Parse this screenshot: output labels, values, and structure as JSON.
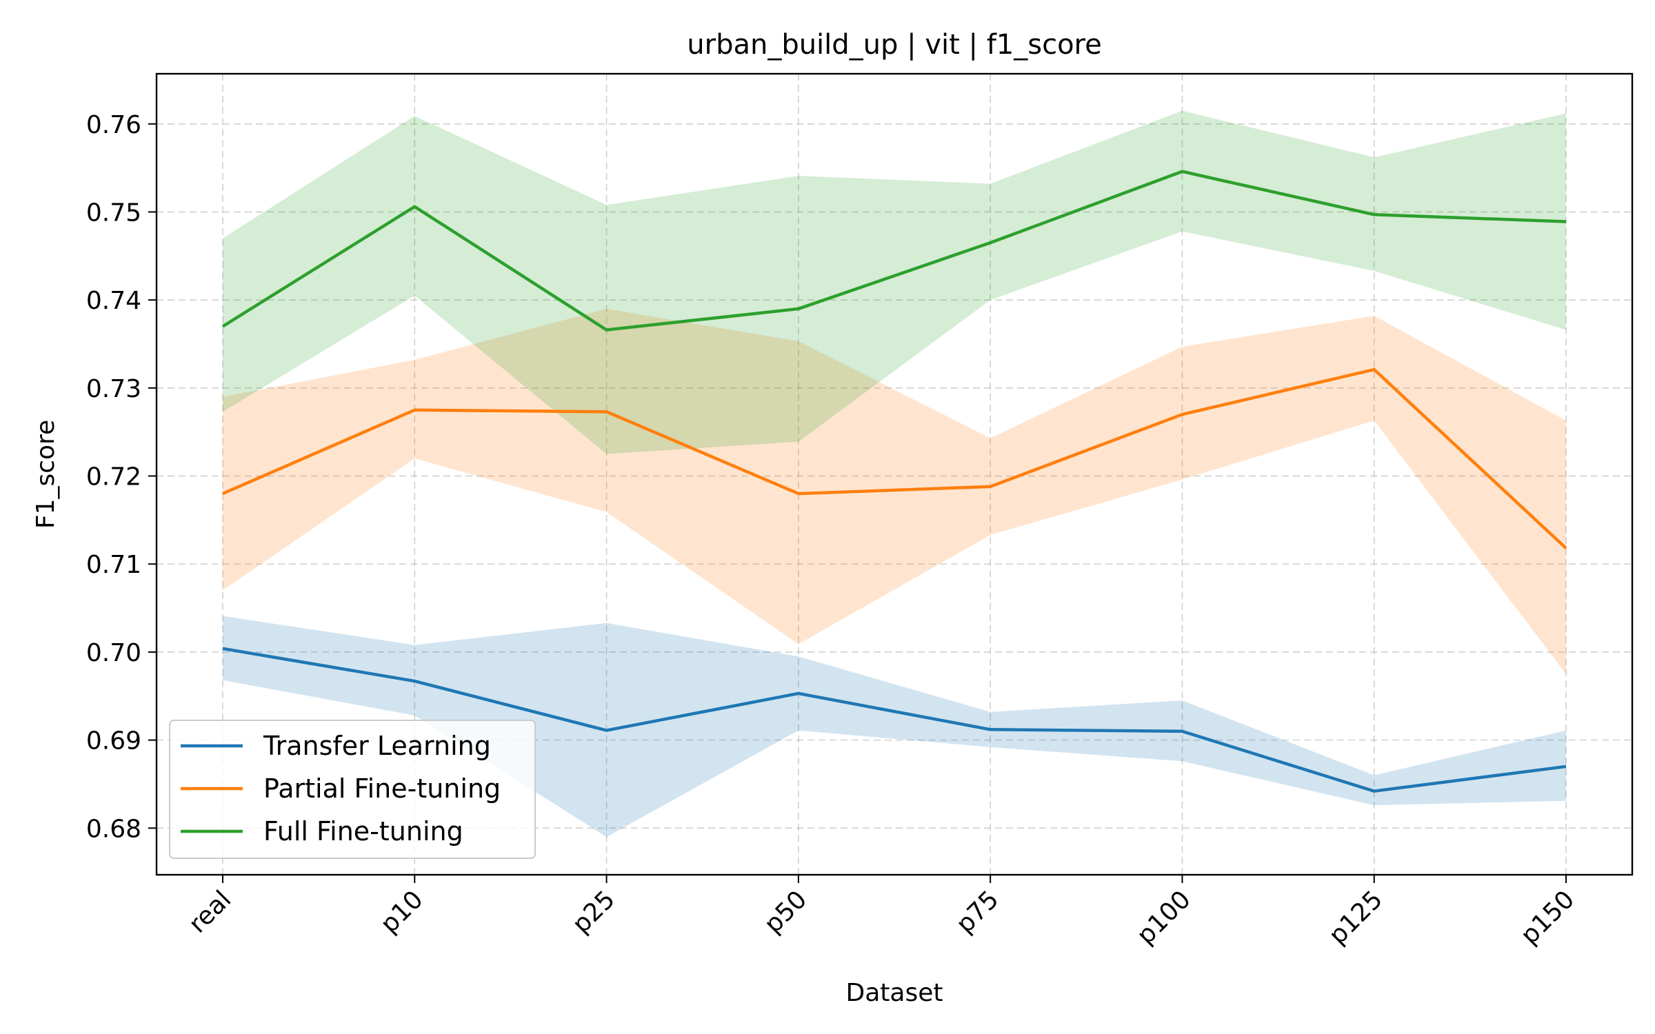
{
  "chart_data": {
    "type": "line",
    "title": "urban_build_up | vit | f1_score",
    "xlabel": "Dataset",
    "ylabel": "F1_score",
    "categories": [
      "real",
      "p10",
      "p25",
      "p50",
      "p75",
      "p100",
      "p125",
      "p150"
    ],
    "yticks": [
      0.68,
      0.69,
      0.7,
      0.71,
      0.72,
      0.73,
      0.74,
      0.75,
      0.76
    ],
    "ytick_labels": [
      "0.68",
      "0.69",
      "0.70",
      "0.71",
      "0.72",
      "0.73",
      "0.74",
      "0.75",
      "0.76"
    ],
    "ylim": [
      0.6747,
      0.7657
    ],
    "grid": true,
    "legend_position": "lower-left",
    "series": [
      {
        "name": "Transfer Learning",
        "color": "#1f77b4",
        "values": [
          0.7004,
          0.6967,
          0.6911,
          0.6953,
          0.6912,
          0.691,
          0.6842,
          0.687
        ],
        "lower": [
          0.6968,
          0.6928,
          0.679,
          0.6911,
          0.6892,
          0.6876,
          0.6826,
          0.6831
        ],
        "upper": [
          0.7041,
          0.7008,
          0.7033,
          0.6995,
          0.6932,
          0.6945,
          0.686,
          0.6911
        ]
      },
      {
        "name": "Partial Fine-tuning",
        "color": "#ff7f0e",
        "values": [
          0.718,
          0.7275,
          0.7273,
          0.718,
          0.7188,
          0.727,
          0.7321,
          0.7118
        ],
        "lower": [
          0.707,
          0.722,
          0.7159,
          0.7009,
          0.7133,
          0.7196,
          0.7263,
          0.6975
        ],
        "upper": [
          0.729,
          0.7332,
          0.739,
          0.7353,
          0.7243,
          0.7347,
          0.7382,
          0.7263
        ]
      },
      {
        "name": "Full Fine-tuning",
        "color": "#2ca02c",
        "values": [
          0.737,
          0.7506,
          0.7366,
          0.739,
          0.7465,
          0.7546,
          0.7497,
          0.7489
        ],
        "lower": [
          0.7273,
          0.7405,
          0.7225,
          0.7239,
          0.74,
          0.7478,
          0.7433,
          0.7366
        ],
        "upper": [
          0.747,
          0.7609,
          0.7508,
          0.7541,
          0.7532,
          0.7615,
          0.7562,
          0.7612
        ]
      }
    ]
  }
}
